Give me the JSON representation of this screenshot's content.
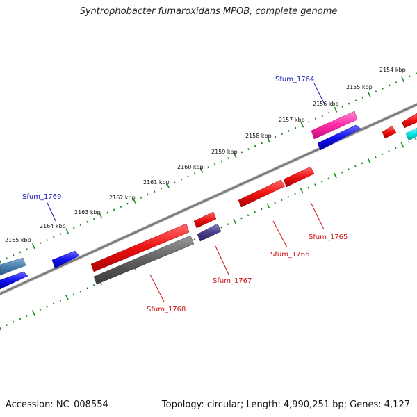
{
  "header": {
    "title": "Syntrophobacter fumaroxidans MPOB, complete genome"
  },
  "footer": {
    "accession": "Accession: NC_008554",
    "info": "Topology: circular; Length: 4,990,251 bp; Genes: 4,127"
  },
  "ticks": [
    {
      "label": "2154 kbp"
    },
    {
      "label": "2155 kbp"
    },
    {
      "label": "2156 kbp"
    },
    {
      "label": "2157 kbp"
    },
    {
      "label": "2158 kbp"
    },
    {
      "label": "2159 kbp"
    },
    {
      "label": "2160 kbp"
    },
    {
      "label": "2161 kbp"
    },
    {
      "label": "2162 kbp"
    },
    {
      "label": "2163 kbp"
    },
    {
      "label": "2164 kbp"
    },
    {
      "label": "2165 kbp"
    }
  ],
  "genes": [
    {
      "label": "Sfum_1764",
      "color": "#1515b8"
    },
    {
      "label": "Sfum_1765",
      "color": "#cc1111"
    },
    {
      "label": "Sfum_1766",
      "color": "#cc1111"
    },
    {
      "label": "Sfum_1767",
      "color": "#cc1111"
    },
    {
      "label": "Sfum_1768",
      "color": "#cc1111"
    },
    {
      "label": "Sfum_1769",
      "color": "#1515b8"
    }
  ],
  "colors": {
    "backbone": "#808080",
    "tick": "#1a8a1a",
    "forward_red": "#ee1111",
    "forward_blue": "#1111ee",
    "magenta": "#ff2aa8",
    "cyan": "#00e5e5",
    "gray": "#606060",
    "purple": "#4a3f8a",
    "steel": "#4a7fb0"
  }
}
